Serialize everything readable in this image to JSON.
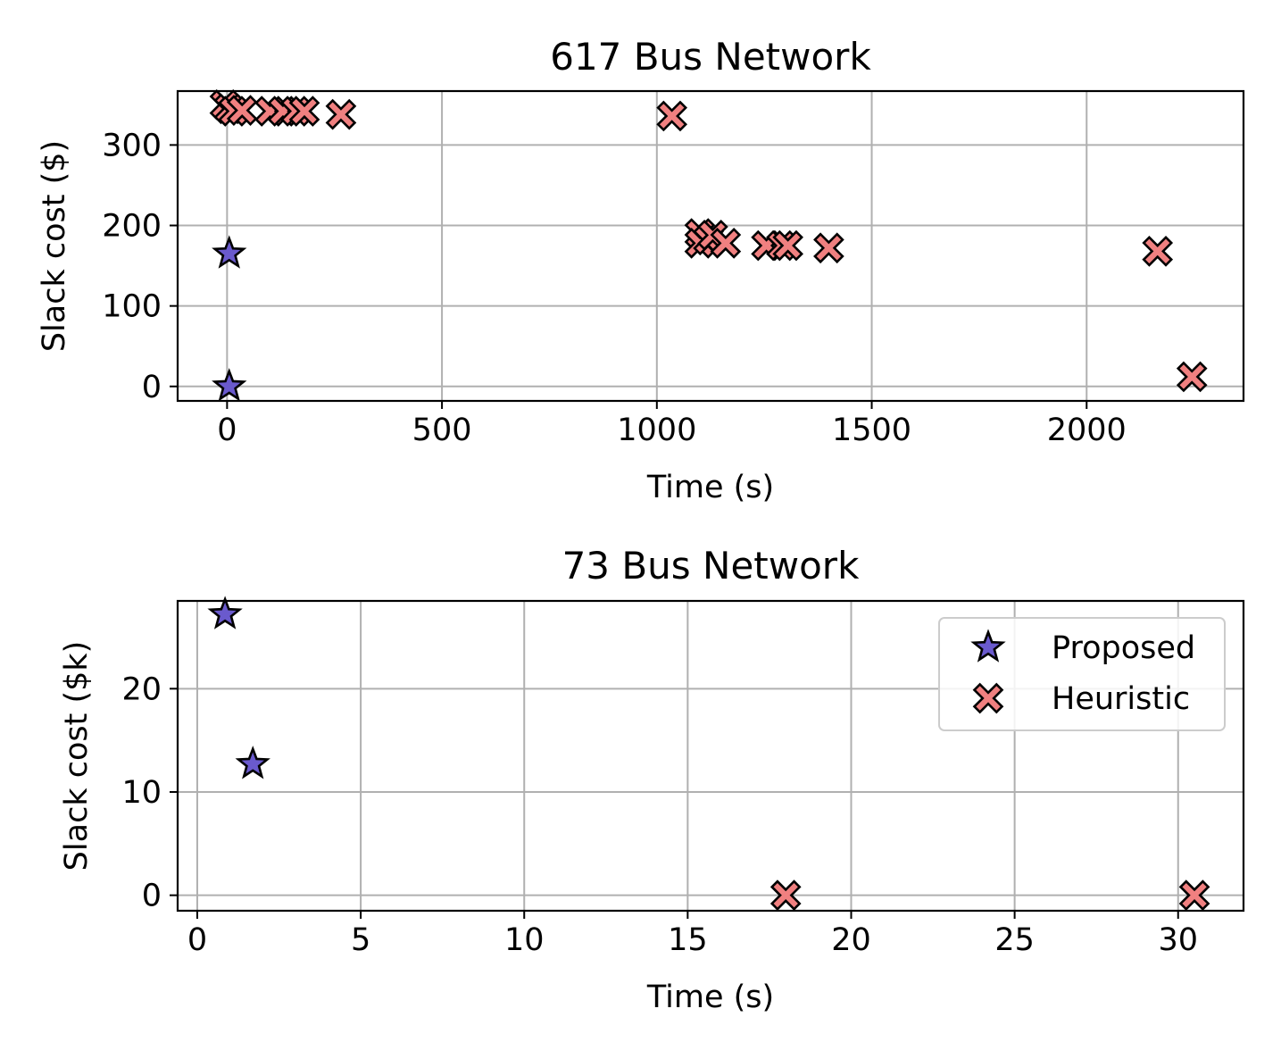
{
  "chart_data": [
    {
      "type": "scatter",
      "title": "617 Bus Network",
      "xlabel": "Time (s)",
      "ylabel": "Slack cost ($)",
      "xlim": [
        -115,
        2365
      ],
      "ylim": [
        -18,
        367
      ],
      "xticks": [
        0,
        500,
        1000,
        1500,
        2000
      ],
      "yticks": [
        0,
        100,
        200,
        300
      ],
      "grid": true,
      "legend": null,
      "series": [
        {
          "name": "Proposed",
          "marker": "star",
          "color": "#6a5acd",
          "points": [
            [
              5,
              165
            ],
            [
              5,
              0
            ]
          ]
        },
        {
          "name": "Heuristic",
          "marker": "x",
          "color": "#f08080",
          "points": [
            [
              -5,
              350
            ],
            [
              5,
              345
            ],
            [
              15,
              342
            ],
            [
              35,
              343
            ],
            [
              100,
              342
            ],
            [
              130,
              342
            ],
            [
              160,
              342
            ],
            [
              180,
              342
            ],
            [
              265,
              338
            ],
            [
              1035,
              336
            ],
            [
              1100,
              190
            ],
            [
              1100,
              178
            ],
            [
              1120,
              182
            ],
            [
              1130,
              188
            ],
            [
              1160,
              178
            ],
            [
              1255,
              175
            ],
            [
              1290,
              175
            ],
            [
              1305,
              175
            ],
            [
              1400,
              172
            ],
            [
              2165,
              168
            ],
            [
              2245,
              12
            ]
          ]
        }
      ]
    },
    {
      "type": "scatter",
      "title": "73 Bus Network",
      "xlabel": "Time (s)",
      "ylabel": "Slack cost ($k)",
      "xlim": [
        -0.6,
        32.0
      ],
      "ylim": [
        -1.5,
        28.5
      ],
      "xticks": [
        0,
        5,
        10,
        15,
        20,
        25,
        30
      ],
      "yticks": [
        0,
        10,
        20
      ],
      "grid": true,
      "legend": {
        "position": "upper right",
        "entries": [
          "Proposed",
          "Heuristic"
        ]
      },
      "series": [
        {
          "name": "Proposed",
          "marker": "star",
          "color": "#6a5acd",
          "points": [
            [
              0.85,
              27.2
            ],
            [
              1.7,
              12.7
            ]
          ]
        },
        {
          "name": "Heuristic",
          "marker": "x",
          "color": "#f08080",
          "points": [
            [
              18.0,
              0.0
            ],
            [
              30.5,
              0.0
            ]
          ]
        }
      ]
    }
  ]
}
